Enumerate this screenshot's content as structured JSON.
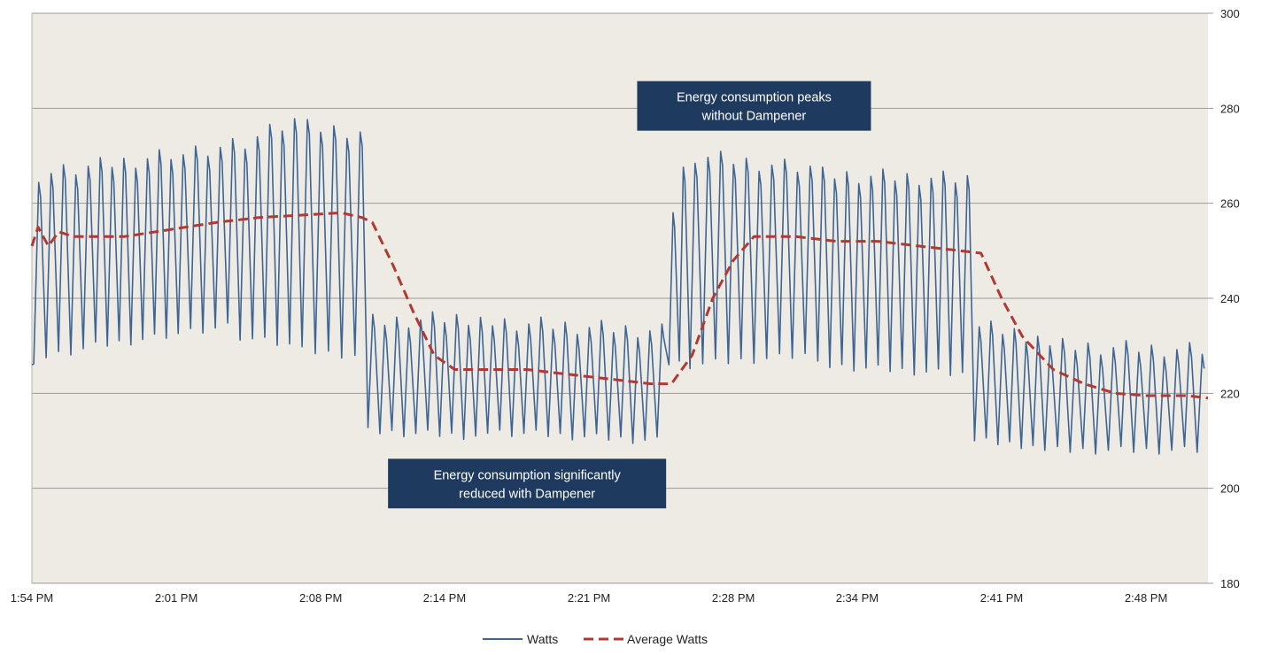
{
  "chart_data": {
    "type": "line",
    "title": "",
    "xlabel": "",
    "ylabel": "",
    "ylim": [
      180,
      300
    ],
    "y_ticks": [
      180,
      200,
      220,
      240,
      260,
      280,
      300
    ],
    "y_axis_side": "right",
    "grid": true,
    "x_tick_labels": [
      "1:54 PM",
      "2:01 PM",
      "2:08 PM",
      "2:14 PM",
      "2:21 PM",
      "2:28 PM",
      "2:34 PM",
      "2:41 PM",
      "2:48 PM"
    ],
    "x_start": "1:54 PM",
    "x_end": "2:51 PM",
    "x_minute_positions": [
      0,
      7,
      14,
      20,
      27,
      34,
      40,
      47,
      54
    ],
    "colors": {
      "plot_background": "#eeebe4",
      "grid": "#9a9a9a",
      "watts": "#3e6593",
      "average": "#b03a33",
      "annotation_box": "#1f3a5f"
    },
    "legend": {
      "placement": "bottom-center",
      "entries": [
        "Watts",
        "Average Watts"
      ]
    },
    "annotations": [
      {
        "lines": [
          "Energy consumption peaks",
          "without Dampener"
        ],
        "at_minute": 35,
        "at_value": 280.5
      },
      {
        "lines": [
          "Energy consumption significantly",
          "reduced with Dampener"
        ],
        "at_minute": 24,
        "at_value": 201
      }
    ],
    "series": [
      {
        "name": "Watts",
        "style": "solid",
        "oscillation_period_min": 0.6,
        "segments": [
          {
            "from_min": 0.0,
            "to_min": 3.0,
            "peaks": [
              266,
              267
            ],
            "troughs": [
              227,
              229
            ]
          },
          {
            "from_min": 3.0,
            "to_min": 7.0,
            "peaks": [
              268,
              270
            ],
            "troughs": [
              230,
              232
            ]
          },
          {
            "from_min": 7.0,
            "to_min": 10.0,
            "peaks": [
              271,
              272
            ],
            "troughs": [
              233,
              234
            ]
          },
          {
            "from_min": 10.0,
            "to_min": 13.0,
            "peaks": [
              273,
              277
            ],
            "troughs": [
              232,
              230
            ]
          },
          {
            "from_min": 13.0,
            "to_min": 16.2,
            "peaks": [
              276,
              275
            ],
            "troughs": [
              229,
              228
            ]
          },
          {
            "from_min": 16.2,
            "to_min": 22.0,
            "peaks": [
              235,
              236
            ],
            "troughs": [
              212,
              211
            ]
          },
          {
            "from_min": 22.0,
            "to_min": 30.8,
            "peaks": [
              235,
              233
            ],
            "troughs": [
              212,
              210
            ]
          },
          {
            "from_min": 30.8,
            "to_min": 31.8,
            "peaks": [
              258,
              266
            ],
            "troughs": [
              226,
              226
            ]
          },
          {
            "from_min": 31.8,
            "to_min": 38.0,
            "peaks": [
              270,
              267
            ],
            "troughs": [
              226,
              228
            ]
          },
          {
            "from_min": 38.0,
            "to_min": 45.6,
            "peaks": [
              266,
              265
            ],
            "troughs": [
              226,
              224
            ]
          },
          {
            "from_min": 45.6,
            "to_min": 49.0,
            "peaks": [
              234,
              232
            ],
            "troughs": [
              210,
              209
            ]
          },
          {
            "from_min": 49.0,
            "to_min": 57.0,
            "peaks": [
              230,
              229
            ],
            "troughs": [
              208,
              208
            ]
          }
        ]
      },
      {
        "name": "Average Watts",
        "style": "dashed",
        "points": [
          [
            0.0,
            251
          ],
          [
            0.3,
            255
          ],
          [
            0.8,
            251
          ],
          [
            1.3,
            254
          ],
          [
            2.0,
            253
          ],
          [
            3.0,
            253
          ],
          [
            4.5,
            253
          ],
          [
            6.0,
            254
          ],
          [
            7.5,
            255
          ],
          [
            9.0,
            256
          ],
          [
            11.0,
            257
          ],
          [
            13.0,
            257.5
          ],
          [
            15.0,
            258
          ],
          [
            16.0,
            257
          ],
          [
            16.5,
            256
          ],
          [
            17.5,
            247
          ],
          [
            18.5,
            237
          ],
          [
            19.5,
            228
          ],
          [
            20.5,
            225
          ],
          [
            22.0,
            225
          ],
          [
            24.0,
            225
          ],
          [
            26.0,
            224
          ],
          [
            28.0,
            223
          ],
          [
            30.0,
            222
          ],
          [
            31.0,
            222
          ],
          [
            32.0,
            228
          ],
          [
            33.0,
            240
          ],
          [
            34.0,
            248
          ],
          [
            35.0,
            253
          ],
          [
            37.0,
            253
          ],
          [
            39.0,
            252
          ],
          [
            41.0,
            252
          ],
          [
            43.0,
            251
          ],
          [
            45.0,
            250
          ],
          [
            46.0,
            249.5
          ],
          [
            47.0,
            240
          ],
          [
            48.0,
            232
          ],
          [
            49.5,
            225
          ],
          [
            51.0,
            222
          ],
          [
            52.5,
            220
          ],
          [
            54.0,
            219.5
          ],
          [
            56.0,
            219.5
          ],
          [
            57.0,
            219
          ]
        ]
      }
    ]
  }
}
